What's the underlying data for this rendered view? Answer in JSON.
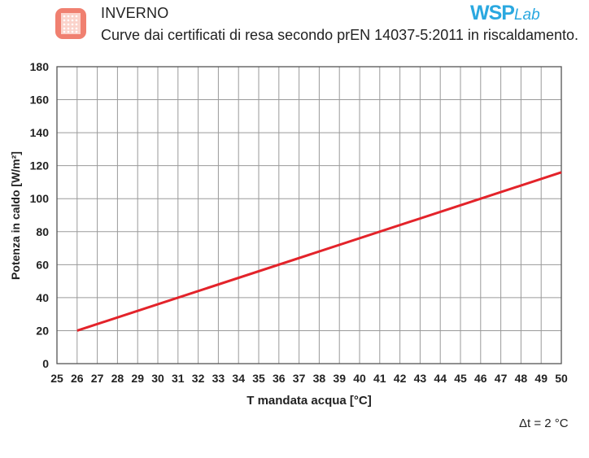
{
  "header": {
    "title": "INVERNO",
    "subtitle": "Curve dai certificati di resa secondo prEN 14037-5:2011 in riscaldamento.",
    "brand_main": "WSP",
    "brand_sub": "Lab",
    "icon": "radiator-panel-icon",
    "icon_color": "#f08070"
  },
  "footnote": "Δt = 2 °C",
  "chart_data": {
    "type": "line",
    "title": "",
    "xlabel": "T mandata acqua [°C]",
    "ylabel": "Potenza in caldo [W/m²]",
    "xlim": [
      25,
      50
    ],
    "ylim": [
      0,
      180
    ],
    "xticks": [
      25,
      26,
      27,
      28,
      29,
      30,
      31,
      32,
      33,
      34,
      35,
      36,
      37,
      38,
      39,
      40,
      41,
      42,
      43,
      44,
      45,
      46,
      47,
      48,
      49,
      50
    ],
    "yticks": [
      0,
      20,
      40,
      60,
      80,
      100,
      120,
      140,
      160,
      180
    ],
    "grid": true,
    "series": [
      {
        "x": [
          26,
          50
        ],
        "y": [
          20,
          116
        ],
        "color": "#e3232a"
      }
    ]
  }
}
